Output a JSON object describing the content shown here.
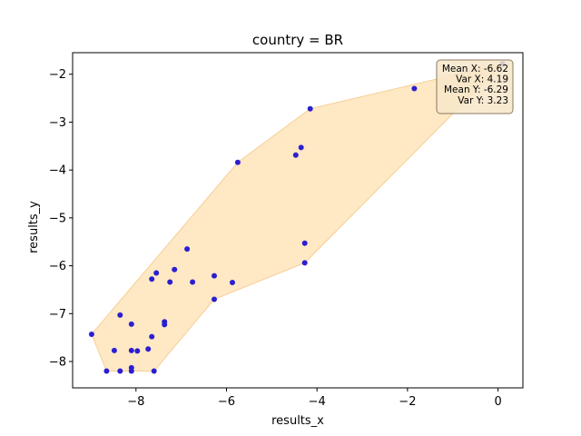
{
  "chart_data": {
    "type": "scatter",
    "title": "country = BR",
    "xlabel": "results_x",
    "ylabel": "results_y",
    "xlim": [
      -9.4,
      0.55
    ],
    "ylim": [
      -8.55,
      -1.55
    ],
    "xticks": [
      -8,
      -6,
      -4,
      -2,
      0
    ],
    "xtick_labels": [
      "−8",
      "−6",
      "−4",
      "−2",
      "0"
    ],
    "yticks": [
      -8,
      -7,
      -6,
      -5,
      -4,
      -3,
      -2
    ],
    "ytick_labels": [
      "−8",
      "−7",
      "−6",
      "−5",
      "−4",
      "−3",
      "−2"
    ],
    "grid": false,
    "point_color": "#2b1fd1",
    "hull_color": "#ffe8c4",
    "hull_edge_color": "#f5cf96",
    "points": [
      {
        "x": 0.1,
        "y": -1.78
      },
      {
        "x": -1.85,
        "y": -2.3
      },
      {
        "x": -4.15,
        "y": -2.72
      },
      {
        "x": -4.35,
        "y": -3.53
      },
      {
        "x": -4.47,
        "y": -3.69
      },
      {
        "x": -5.75,
        "y": -3.84
      },
      {
        "x": -4.27,
        "y": -5.53
      },
      {
        "x": -4.27,
        "y": -5.94
      },
      {
        "x": -6.87,
        "y": -5.65
      },
      {
        "x": -7.15,
        "y": -6.08
      },
      {
        "x": -7.55,
        "y": -6.15
      },
      {
        "x": -7.65,
        "y": -6.28
      },
      {
        "x": -7.25,
        "y": -6.34
      },
      {
        "x": -6.75,
        "y": -6.34
      },
      {
        "x": -6.27,
        "y": -6.21
      },
      {
        "x": -5.87,
        "y": -6.35
      },
      {
        "x": -6.27,
        "y": -6.7
      },
      {
        "x": -8.35,
        "y": -7.03
      },
      {
        "x": -8.1,
        "y": -7.22
      },
      {
        "x": -7.37,
        "y": -7.17
      },
      {
        "x": -7.37,
        "y": -7.23
      },
      {
        "x": -7.65,
        "y": -7.48
      },
      {
        "x": -8.98,
        "y": -7.43
      },
      {
        "x": -7.73,
        "y": -7.74
      },
      {
        "x": -8.48,
        "y": -7.77
      },
      {
        "x": -8.1,
        "y": -7.77
      },
      {
        "x": -7.97,
        "y": -7.78
      },
      {
        "x": -8.1,
        "y": -8.13
      },
      {
        "x": -8.1,
        "y": -8.2
      },
      {
        "x": -8.65,
        "y": -8.2
      },
      {
        "x": -8.35,
        "y": -8.2
      },
      {
        "x": -7.6,
        "y": -8.2
      }
    ],
    "hull": [
      {
        "x": 0.1,
        "y": -1.78
      },
      {
        "x": -4.15,
        "y": -2.72
      },
      {
        "x": -5.75,
        "y": -3.84
      },
      {
        "x": -8.98,
        "y": -7.43
      },
      {
        "x": -8.65,
        "y": -8.2
      },
      {
        "x": -7.6,
        "y": -8.2
      },
      {
        "x": -6.27,
        "y": -6.7
      },
      {
        "x": -4.27,
        "y": -5.94
      }
    ],
    "stats": {
      "lines": [
        "Mean X: -6.62",
        "Var X: 4.19",
        "Mean Y: -6.29",
        "Var Y: 3.23"
      ],
      "placement": "top-right",
      "box_color": "#f7e6c9",
      "box_edge_color": "#8a7a62"
    }
  }
}
